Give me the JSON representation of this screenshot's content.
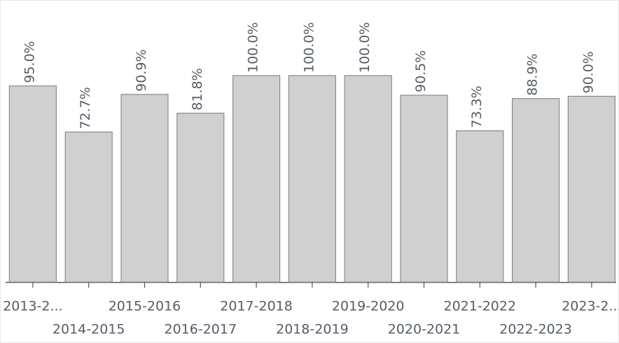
{
  "chart_data": {
    "type": "bar",
    "categories": [
      "2013-2...",
      "2014-2015",
      "2015-2016",
      "2016-2017",
      "2017-2018",
      "2018-2019",
      "2019-2020",
      "2020-2021",
      "2021-2022",
      "2022-2023",
      "2023-2..."
    ],
    "values": [
      95.0,
      72.7,
      90.9,
      81.8,
      100.0,
      100.0,
      100.0,
      90.5,
      73.3,
      88.9,
      90.0
    ],
    "value_labels": [
      "95.0%",
      "72.7%",
      "90.9%",
      "81.8%",
      "100.0%",
      "100.0%",
      "100.0%",
      "90.5%",
      "73.3%",
      "88.9%",
      "90.0%"
    ],
    "color": "#d0d0d0"
  }
}
